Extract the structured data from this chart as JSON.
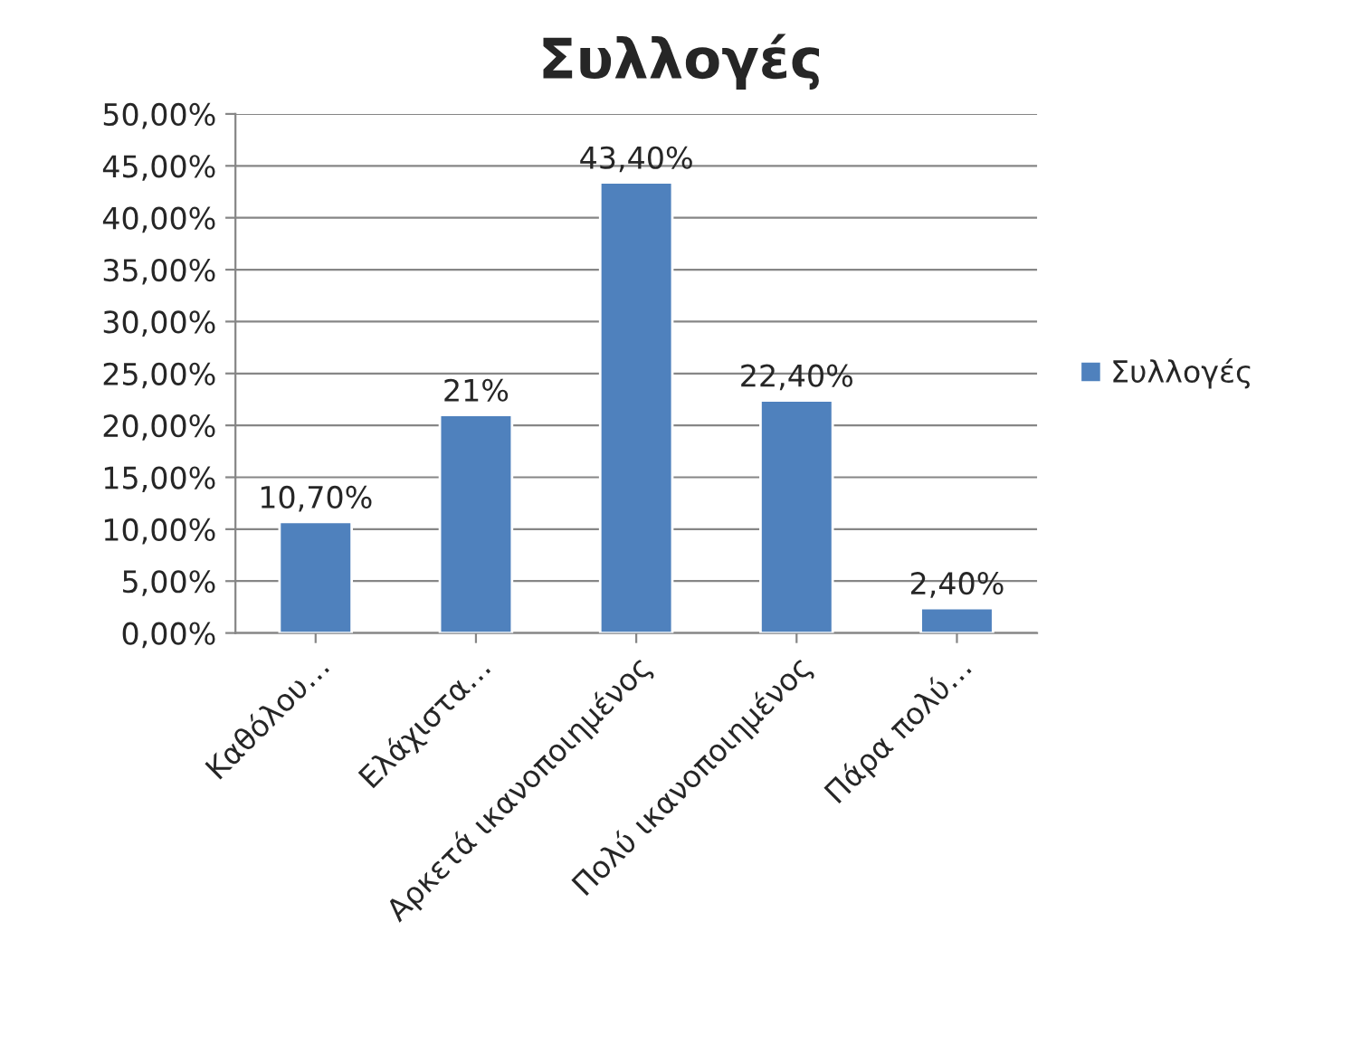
{
  "chart_data": {
    "type": "bar",
    "title": "Συλλογές",
    "categories": [
      "Καθόλου…",
      "Ελάχιστα…",
      "Αρκετά ικανοποιημένος",
      "Πολύ ικανοποιημένος",
      "Πάρα πολύ…"
    ],
    "series": [
      {
        "name": "Συλλογές",
        "color": "#4f81bd",
        "values": [
          10.7,
          21,
          43.4,
          22.4,
          2.4
        ],
        "value_labels": [
          "10,70%",
          "21%",
          "43,40%",
          "22,40%",
          "2,40%"
        ]
      }
    ],
    "ylim": [
      0,
      50
    ],
    "yticks": [
      {
        "value": 0,
        "label": "0,00%"
      },
      {
        "value": 5,
        "label": "5,00%"
      },
      {
        "value": 10,
        "label": "10,00%"
      },
      {
        "value": 15,
        "label": "15,00%"
      },
      {
        "value": 20,
        "label": "20,00%"
      },
      {
        "value": 25,
        "label": "25,00%"
      },
      {
        "value": 30,
        "label": "30,00%"
      },
      {
        "value": 35,
        "label": "35,00%"
      },
      {
        "value": 40,
        "label": "40,00%"
      },
      {
        "value": 45,
        "label": "45,00%"
      },
      {
        "value": 50,
        "label": "50,00%"
      }
    ],
    "grid": "y",
    "legend": "right"
  }
}
